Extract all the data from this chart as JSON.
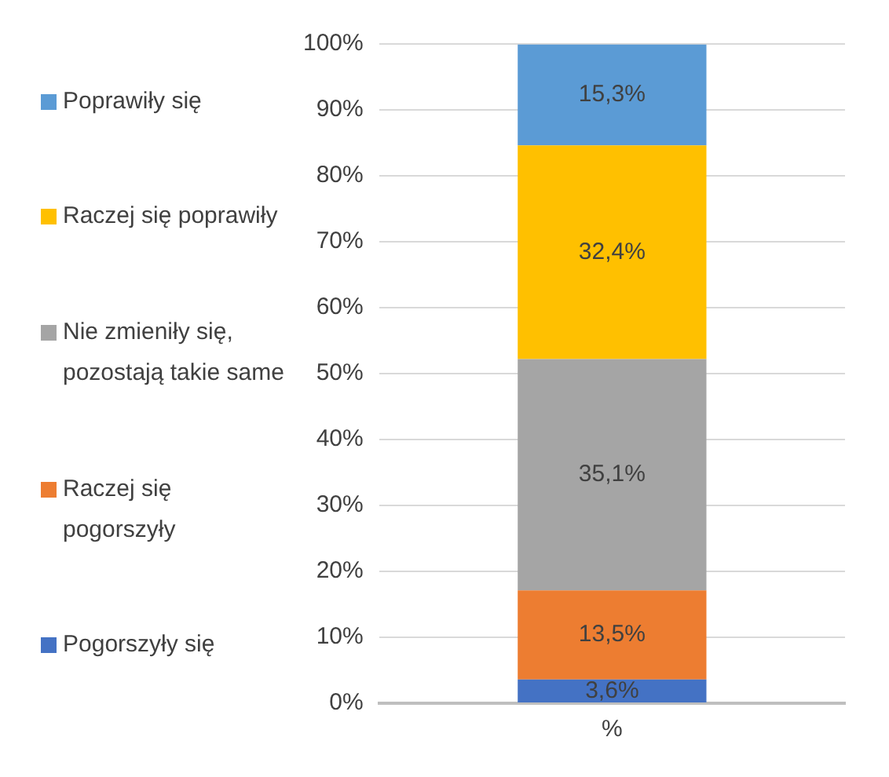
{
  "chart_data": {
    "type": "bar",
    "stacked": true,
    "categories": [
      "%"
    ],
    "series": [
      {
        "name": "Pogorszyły się",
        "color": "#4472c4",
        "values": [
          3.6
        ],
        "value_labels": [
          "3,6%"
        ]
      },
      {
        "name": "Raczej się pogorszyły",
        "color": "#ed7d31",
        "values": [
          13.5
        ],
        "value_labels": [
          "13,5%"
        ]
      },
      {
        "name": "Nie zmieniły się, pozostają takie same",
        "color": "#a5a5a5",
        "values": [
          35.1
        ],
        "value_labels": [
          "35,1%"
        ]
      },
      {
        "name": "Raczej się poprawiły",
        "color": "#ffc000",
        "values": [
          32.4
        ],
        "value_labels": [
          "32,4%"
        ]
      },
      {
        "name": "Poprawiły się",
        "color": "#5b9bd5",
        "values": [
          15.3
        ],
        "value_labels": [
          "15,3%"
        ]
      }
    ],
    "ylim": [
      0,
      100
    ],
    "yticks": [
      {
        "value": 0,
        "label": "0%"
      },
      {
        "value": 10,
        "label": "10%"
      },
      {
        "value": 20,
        "label": "20%"
      },
      {
        "value": 30,
        "label": "30%"
      },
      {
        "value": 40,
        "label": "40%"
      },
      {
        "value": 50,
        "label": "50%"
      },
      {
        "value": 60,
        "label": "60%"
      },
      {
        "value": 70,
        "label": "70%"
      },
      {
        "value": 80,
        "label": "80%"
      },
      {
        "value": 90,
        "label": "90%"
      },
      {
        "value": 100,
        "label": "100%"
      }
    ],
    "grid": "y",
    "legend": "left"
  }
}
